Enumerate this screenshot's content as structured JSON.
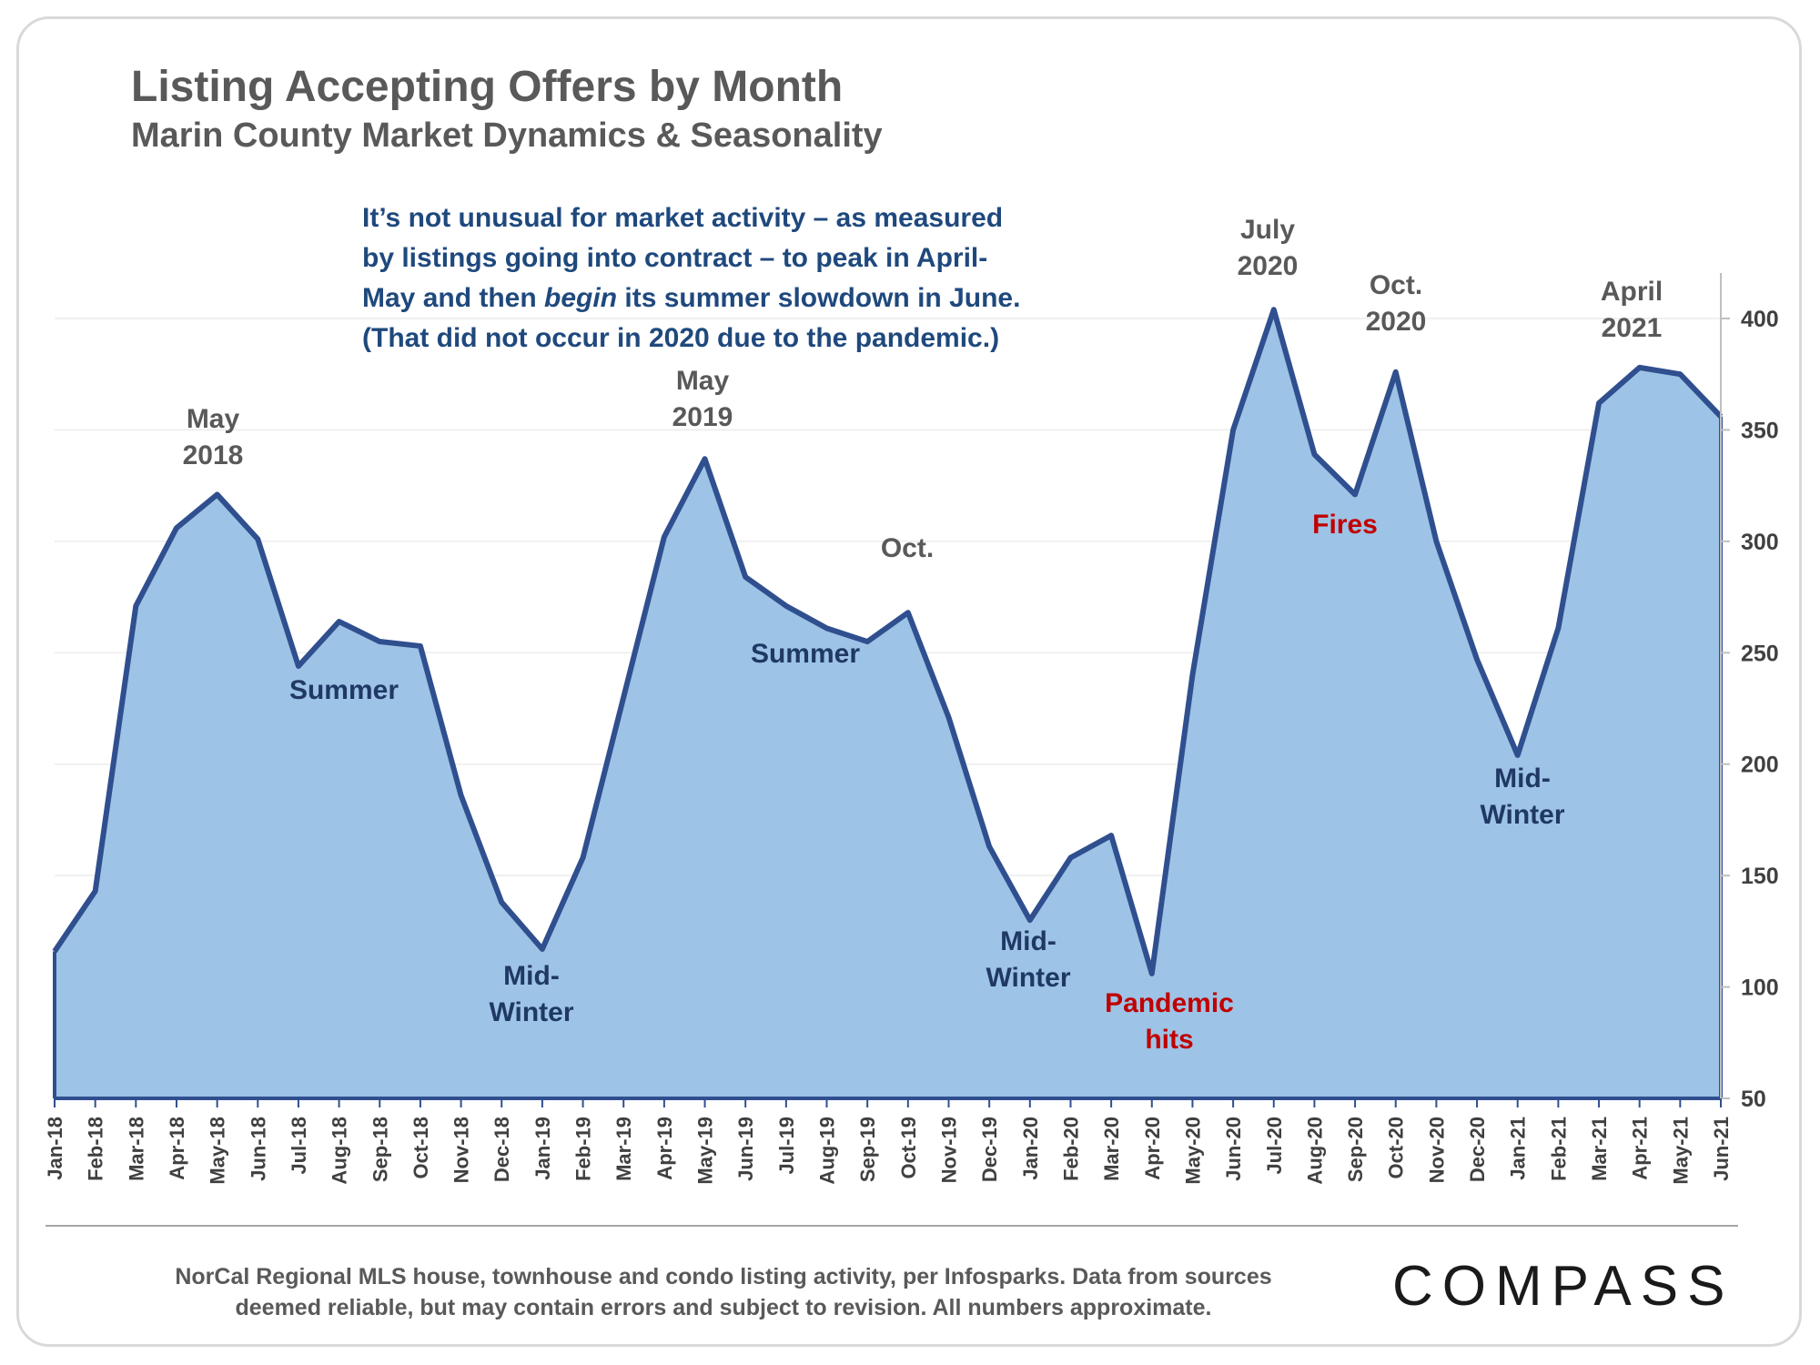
{
  "header": {
    "title": "Listing Accepting Offers by Month",
    "subtitle": "Marin County Market Dynamics & Seasonality"
  },
  "intro": {
    "line1": "It’s not unusual for market activity – as measured",
    "line2": "by listings going into contract – to peak in April-",
    "line3_pre": "May and then ",
    "line3_em": "begin",
    "line3_post": " its summer slowdown in June.",
    "line4": "(That did not occur in 2020 due to the pandemic.)"
  },
  "footer": {
    "note_line1": "NorCal Regional MLS house, townhouse and condo listing activity, per Infosparks. Data from sources",
    "note_line2": "deemed reliable, but may contain errors and subject to revision. All numbers approximate.",
    "logo": "COMPASS"
  },
  "colors": {
    "line": "#2f4f8f",
    "fill": "#9dc3e6",
    "annotation_dark": "#1f3864",
    "annotation_gray": "#595959",
    "annotation_red": "#c00000"
  },
  "chart_data": {
    "type": "area",
    "title": "Listing Accepting Offers by Month",
    "subtitle": "Marin County Market Dynamics & Seasonality",
    "x": [
      "Jan-18",
      "Feb-18",
      "Mar-18",
      "Apr-18",
      "May-18",
      "Jun-18",
      "Jul-18",
      "Aug-18",
      "Sep-18",
      "Oct-18",
      "Nov-18",
      "Dec-18",
      "Jan-19",
      "Feb-19",
      "Mar-19",
      "Apr-19",
      "May-19",
      "Jun-19",
      "Jul-19",
      "Aug-19",
      "Sep-19",
      "Oct-19",
      "Nov-19",
      "Dec-19",
      "Jan-20",
      "Feb-20",
      "Mar-20",
      "Apr-20",
      "May-20",
      "Jun-20",
      "Jul-20",
      "Aug-20",
      "Sep-20",
      "Oct-20",
      "Nov-20",
      "Dec-20",
      "Jan-21",
      "Feb-21",
      "Mar-21",
      "Apr-21",
      "May-21",
      "Jun-21"
    ],
    "values": [
      116,
      143,
      271,
      306,
      321,
      301,
      244,
      264,
      255,
      253,
      186,
      138,
      117,
      158,
      230,
      302,
      337,
      284,
      271,
      261,
      255,
      268,
      221,
      163,
      130,
      158,
      168,
      106,
      240,
      350,
      404,
      339,
      321,
      376,
      300,
      247,
      204,
      261,
      362,
      378,
      375,
      356
    ],
    "ylim": [
      50,
      420
    ],
    "yticks": [
      50,
      100,
      150,
      200,
      250,
      300,
      350,
      400
    ],
    "y_axis_side": "right",
    "grid": true,
    "legend": "none",
    "annotations": [
      {
        "text_lines": [
          "May",
          "2018"
        ],
        "at": "May-18",
        "style": "gray"
      },
      {
        "text_lines": [
          "Summer"
        ],
        "at": "Jul-18",
        "style": "dark"
      },
      {
        "text_lines": [
          "Mid-",
          "Winter"
        ],
        "at": "Jan-19",
        "style": "dark"
      },
      {
        "text_lines": [
          "May",
          "2019"
        ],
        "at": "May-19",
        "style": "gray"
      },
      {
        "text_lines": [
          "Summer"
        ],
        "at": "Jul-19",
        "style": "dark"
      },
      {
        "text_lines": [
          "Oct."
        ],
        "at": "Oct-19",
        "style": "gray"
      },
      {
        "text_lines": [
          "Mid-",
          "Winter"
        ],
        "at": "Jan-20",
        "style": "dark"
      },
      {
        "text_lines": [
          "Pandemic",
          "hits"
        ],
        "at": "Apr-20",
        "style": "red"
      },
      {
        "text_lines": [
          "July",
          "2020"
        ],
        "at": "Jul-20",
        "style": "gray"
      },
      {
        "text_lines": [
          "Fires"
        ],
        "at": "Sep-20",
        "style": "red"
      },
      {
        "text_lines": [
          "Oct.",
          "2020"
        ],
        "at": "Oct-20",
        "style": "gray"
      },
      {
        "text_lines": [
          "Mid-",
          "Winter"
        ],
        "at": "Jan-21",
        "style": "dark"
      },
      {
        "text_lines": [
          "April",
          "2021"
        ],
        "at": "Apr-21",
        "style": "gray"
      }
    ]
  }
}
